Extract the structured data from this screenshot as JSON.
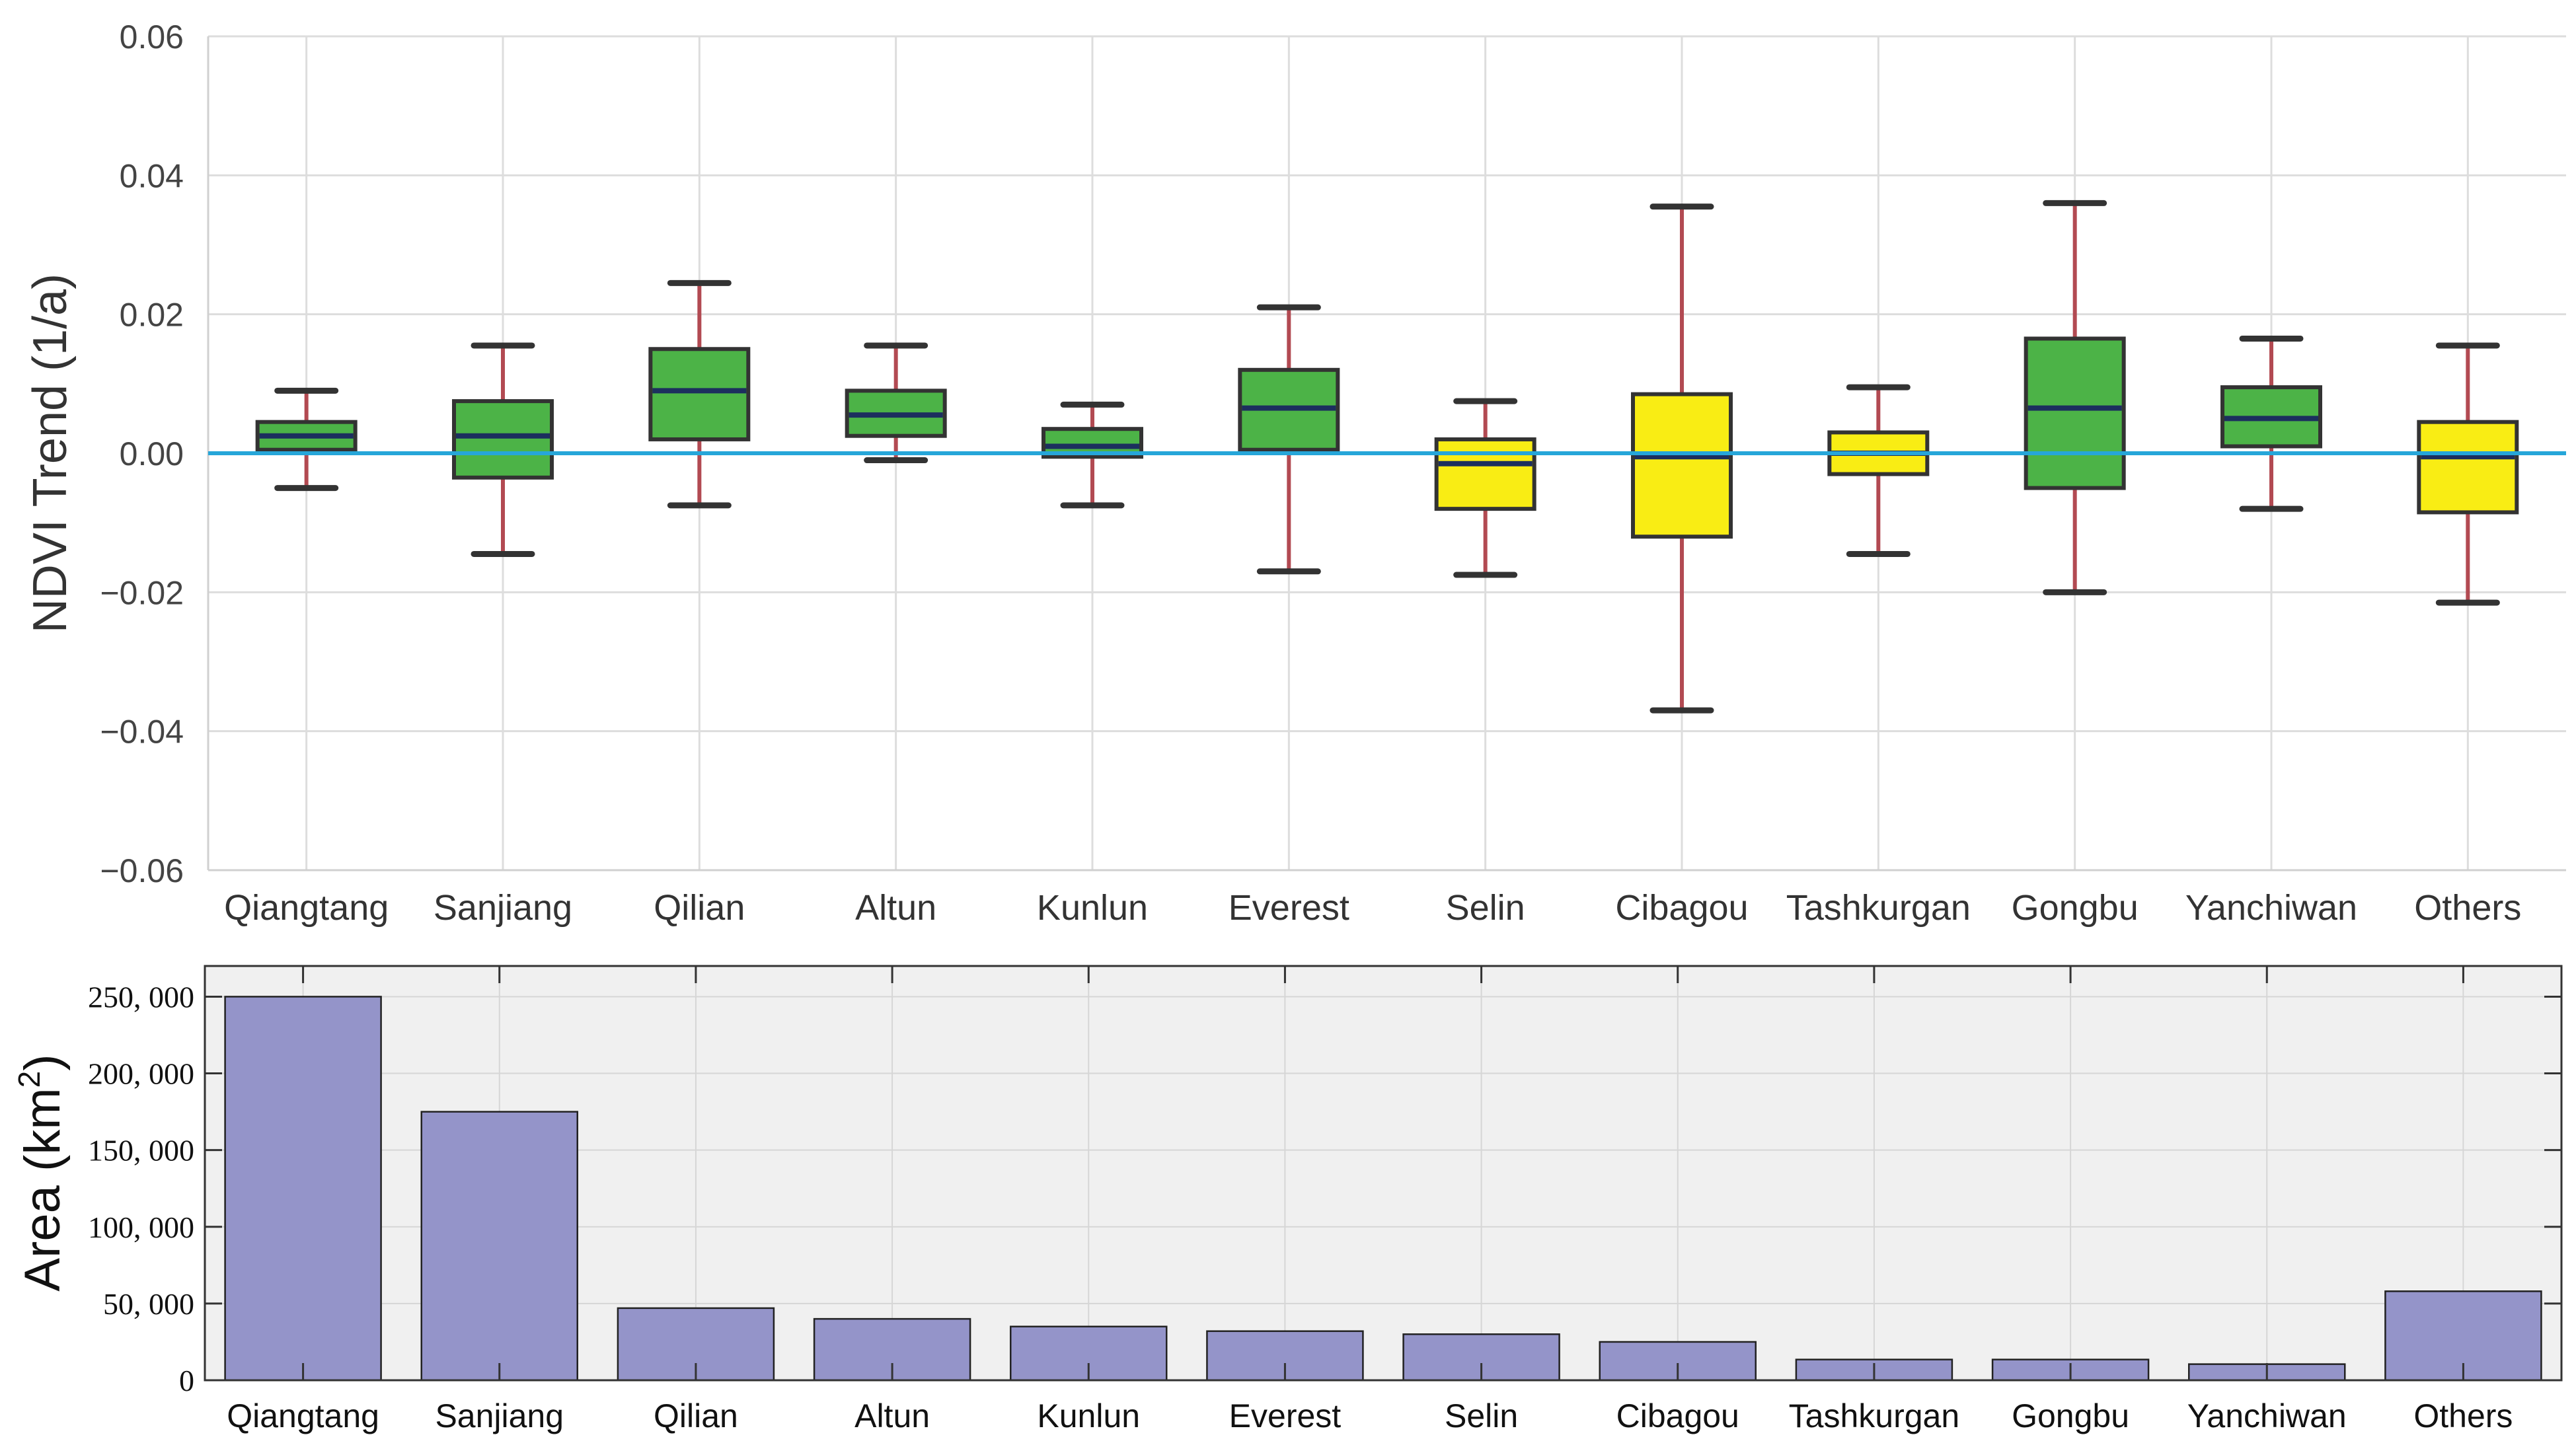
{
  "box_chart": {
    "type": "box",
    "ylabel": "NDVI Trend (1/a)",
    "ylim": [
      -0.06,
      0.06
    ],
    "yticks": [
      -0.06,
      -0.04,
      -0.02,
      0.0,
      0.02,
      0.04,
      0.06
    ],
    "ytick_labels": [
      "−0.06",
      "−0.04",
      "−0.02",
      "0.00",
      "0.02",
      "0.04",
      "0.06"
    ],
    "reference_line": 0.0,
    "categories": [
      "Qiangtang",
      "Sanjiang",
      "Qilian",
      "Altun",
      "Kunlun",
      "Everest",
      "Selin",
      "Cibagou",
      "Tashkurgan",
      "Gongbu",
      "Yanchiwan",
      "Others"
    ],
    "boxes": [
      {
        "whisker_low": -0.005,
        "q1": 0.0005,
        "median": 0.0025,
        "q3": 0.0045,
        "whisker_high": 0.009,
        "color": "green"
      },
      {
        "whisker_low": -0.0145,
        "q1": -0.0035,
        "median": 0.0025,
        "q3": 0.0075,
        "whisker_high": 0.0155,
        "color": "green"
      },
      {
        "whisker_low": -0.0075,
        "q1": 0.002,
        "median": 0.009,
        "q3": 0.015,
        "whisker_high": 0.0245,
        "color": "green"
      },
      {
        "whisker_low": -0.001,
        "q1": 0.0025,
        "median": 0.0055,
        "q3": 0.009,
        "whisker_high": 0.0155,
        "color": "green"
      },
      {
        "whisker_low": -0.0075,
        "q1": -0.0005,
        "median": 0.001,
        "q3": 0.0035,
        "whisker_high": 0.007,
        "color": "green"
      },
      {
        "whisker_low": -0.017,
        "q1": 0.0005,
        "median": 0.0065,
        "q3": 0.012,
        "whisker_high": 0.021,
        "color": "green"
      },
      {
        "whisker_low": -0.0175,
        "q1": -0.008,
        "median": -0.0015,
        "q3": 0.002,
        "whisker_high": 0.0075,
        "color": "yellow"
      },
      {
        "whisker_low": -0.037,
        "q1": -0.012,
        "median": -0.0005,
        "q3": 0.0085,
        "whisker_high": 0.0355,
        "color": "yellow"
      },
      {
        "whisker_low": -0.0145,
        "q1": -0.003,
        "median": 0.0,
        "q3": 0.003,
        "whisker_high": 0.0095,
        "color": "yellow"
      },
      {
        "whisker_low": -0.02,
        "q1": -0.005,
        "median": 0.0065,
        "q3": 0.0165,
        "whisker_high": 0.036,
        "color": "green"
      },
      {
        "whisker_low": -0.008,
        "q1": 0.001,
        "median": 0.005,
        "q3": 0.0095,
        "whisker_high": 0.0165,
        "color": "green"
      },
      {
        "whisker_low": -0.0215,
        "q1": -0.0085,
        "median": -0.0005,
        "q3": 0.0045,
        "whisker_high": 0.0155,
        "color": "yellow"
      }
    ],
    "colors": {
      "green": "#4cb347",
      "yellow": "#f9ed14",
      "box_edge": "#333333",
      "median": "#1c2f5e",
      "whisker": "#b24a52",
      "reference_line": "#26a6d9",
      "grid": "#dddddd"
    }
  },
  "bar_chart": {
    "type": "bar",
    "ylabel_main": "Area (km",
    "ylabel_sup": "2",
    "ylabel_end": ")",
    "ylim": [
      0,
      270000
    ],
    "yticks": [
      0,
      50000,
      100000,
      150000,
      200000,
      250000
    ],
    "ytick_labels": [
      "0",
      "50, 000",
      "100, 000",
      "150, 000",
      "200, 000",
      "250, 000"
    ],
    "categories": [
      "Qiangtang",
      "Sanjiang",
      "Qilian",
      "Altun",
      "Kunlun",
      "Everest",
      "Selin",
      "Cibagou",
      "Tashkurgan",
      "Gongbu",
      "Yanchiwan",
      "Others"
    ],
    "values": [
      250000,
      175000,
      47000,
      40000,
      35000,
      32000,
      30000,
      25000,
      13500,
      13500,
      10500,
      58000
    ],
    "colors": {
      "bar": "#9494c9",
      "bar_edge": "#222222",
      "background": "#f0f0f0",
      "grid": "#d6d6d6",
      "frame": "#333333"
    }
  }
}
